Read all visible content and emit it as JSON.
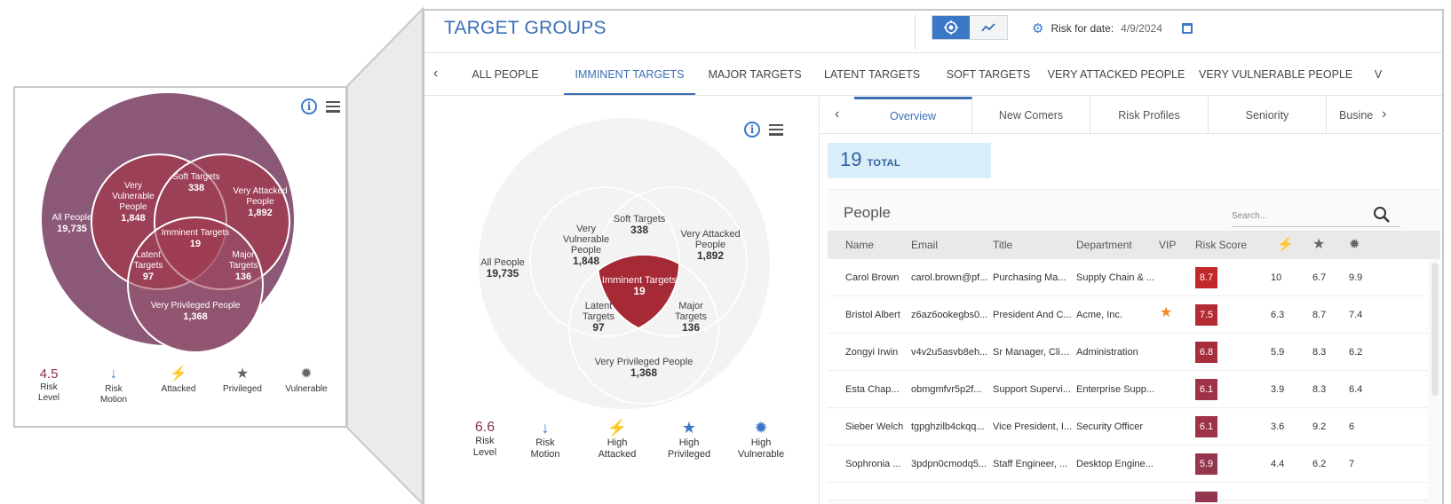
{
  "small_venn": {
    "all": {
      "label": "All People",
      "value": "19,735"
    },
    "vulnerable": {
      "label": [
        "Very",
        "Vulnerable",
        "People"
      ],
      "value": "1,848"
    },
    "soft": {
      "label": "Soft Targets",
      "value": "338"
    },
    "attacked": {
      "label": [
        "Very Attacked",
        "People"
      ],
      "value": "1,892"
    },
    "imminent": {
      "label": "Imminent Targets",
      "value": "19"
    },
    "latent": {
      "label": [
        "Latent",
        "Targets"
      ],
      "value": "97"
    },
    "major": {
      "label": [
        "Major",
        "Targets"
      ],
      "value": "136"
    },
    "privileged": {
      "label": "Very Privileged People",
      "value": "1,368"
    },
    "colors": {
      "outer": "#8c5878",
      "fill": "#9c4058",
      "imminent": "#b02a36",
      "major": "#857090"
    }
  },
  "small_metrics": {
    "risk_level": {
      "value": "4.5",
      "label": [
        "Risk",
        "Level"
      ]
    },
    "risk_motion": {
      "label": [
        "Risk",
        "Motion"
      ],
      "icon": "arrow-down-icon"
    },
    "attacked": {
      "label": "Attacked",
      "icon": "bolt-icon"
    },
    "privileged": {
      "label": "Privileged",
      "icon": "star-icon"
    },
    "vulnerable": {
      "label": "Vulnerable",
      "icon": "bug-icon"
    }
  },
  "header": {
    "title": "TARGET GROUPS",
    "risk_for_date_label": "Risk for date:",
    "risk_for_date_value": "4/9/2024"
  },
  "group_tabs": [
    {
      "label": "ALL PEOPLE"
    },
    {
      "label": "IMMINENT TARGETS",
      "active": true
    },
    {
      "label": "MAJOR TARGETS"
    },
    {
      "label": "LATENT TARGETS"
    },
    {
      "label": "SOFT TARGETS"
    },
    {
      "label": "VERY ATTACKED PEOPLE"
    },
    {
      "label": "VERY VULNERABLE PEOPLE"
    },
    {
      "label": "V"
    }
  ],
  "big_venn": {
    "all": {
      "label": "All People",
      "value": "19,735"
    },
    "vulnerable": {
      "label": [
        "Very",
        "Vulnerable",
        "People"
      ],
      "value": "1,848"
    },
    "soft": {
      "label": "Soft Targets",
      "value": "338"
    },
    "attacked": {
      "label": [
        "Very Attacked",
        "People"
      ],
      "value": "1,892"
    },
    "imminent": {
      "label": "Imminent Targets",
      "value": "19"
    },
    "latent": {
      "label": [
        "Latent",
        "Targets"
      ],
      "value": "97"
    },
    "major": {
      "label": [
        "Major",
        "Targets"
      ],
      "value": "136"
    },
    "privileged": {
      "label": "Very Privileged People",
      "value": "1,368"
    },
    "colors": {
      "outer": "#f3f3f3",
      "imminent": "#a52a36"
    }
  },
  "big_metrics": {
    "risk_level": {
      "value": "6.6",
      "label": [
        "Risk",
        "Level"
      ]
    },
    "risk_motion": {
      "label": [
        "Risk",
        "Motion"
      ],
      "icon": "arrow-down-icon"
    },
    "attacked": {
      "label": [
        "High",
        "Attacked"
      ],
      "icon": "bolt-icon"
    },
    "privileged": {
      "label": [
        "High",
        "Privileged"
      ],
      "icon": "star-icon"
    },
    "vulnerable": {
      "label": [
        "High",
        "Vulnerable"
      ],
      "icon": "bug-icon"
    }
  },
  "sub_tabs": [
    {
      "label": "Overview",
      "active": true
    },
    {
      "label": "New Comers"
    },
    {
      "label": "Risk Profiles"
    },
    {
      "label": "Seniority"
    },
    {
      "label": "Busine"
    }
  ],
  "total": {
    "value": "19",
    "label": "TOTAL"
  },
  "people": {
    "title": "People",
    "search_placeholder": "Search...",
    "columns": {
      "name": "Name",
      "email": "Email",
      "title": "Title",
      "department": "Department",
      "vip": "VIP",
      "risk_score": "Risk Score"
    },
    "column_icons": [
      "bolt-icon",
      "star-icon",
      "bug-icon"
    ],
    "rows": [
      {
        "name": "Carol Brown",
        "email": "carol.brown@pf...",
        "title": "Purchasing Ma...",
        "department": "Supply Chain & ...",
        "vip": false,
        "risk": "8.7",
        "risk_color": "#c0282a",
        "a": "10",
        "p": "6.7",
        "v": "9.9"
      },
      {
        "name": "Bristol Albert",
        "email": "z6az6ookegbs0...",
        "title": "President And C...",
        "department": "Acme, Inc.",
        "vip": true,
        "risk": "7.5",
        "risk_color": "#b42b34",
        "a": "6.3",
        "p": "8.7",
        "v": "7.4"
      },
      {
        "name": "Zongyi Irwin",
        "email": "v4v2u5asvb8eh...",
        "title": "Sr Manager, Clie...",
        "department": "Administration",
        "vip": false,
        "risk": "6.8",
        "risk_color": "#a82e3e",
        "a": "5.9",
        "p": "8.3",
        "v": "6.2"
      },
      {
        "name": "Esta Chap...",
        "email": "obmgmfvr5p2f...",
        "title": "Support Supervi...",
        "department": "Enterprise Supp...",
        "vip": false,
        "risk": "6.1",
        "risk_color": "#9e3246",
        "a": "3.9",
        "p": "8.3",
        "v": "6.4"
      },
      {
        "name": "Sieber Welch",
        "email": "tgpghzilb4ckqq...",
        "title": "Vice President, I...",
        "department": "Security Officer",
        "vip": false,
        "risk": "6.1",
        "risk_color": "#9e3246",
        "a": "3.6",
        "p": "9.2",
        "v": "6"
      },
      {
        "name": "Sophronia ...",
        "email": "3pdpn0cmodq5...",
        "title": "Staff Engineer, ...",
        "department": "Desktop Engine...",
        "vip": false,
        "risk": "5.9",
        "risk_color": "#94364e",
        "a": "4.4",
        "p": "6.2",
        "v": "7"
      }
    ]
  }
}
